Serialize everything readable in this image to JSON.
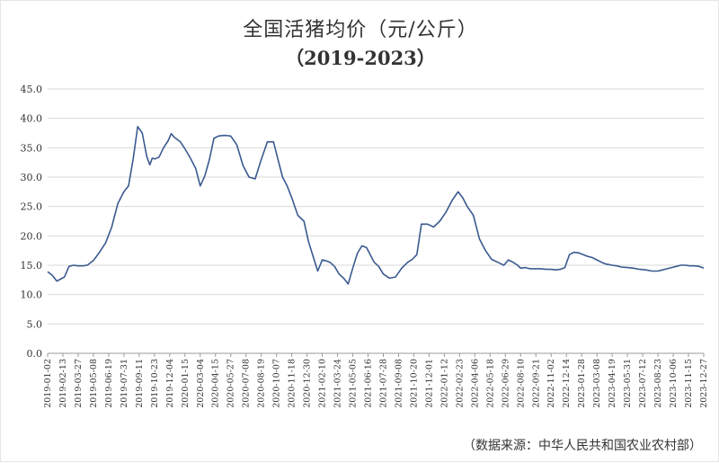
{
  "chart_data": {
    "type": "line",
    "title": "全国活猪均价（元/公斤）",
    "subtitle": "（2019-2023）",
    "xlabel": "",
    "ylabel": "",
    "ylim": [
      0,
      45
    ],
    "yticks": [
      "0.0",
      "5.0",
      "10.0",
      "15.0",
      "20.0",
      "25.0",
      "30.0",
      "35.0",
      "40.0",
      "45.0"
    ],
    "grid": true,
    "line_color": "#3a5a8f",
    "categories": [
      "2019-01-02",
      "2019-02-13",
      "2019-03-27",
      "2019-05-08",
      "2019-06-19",
      "2019-07-31",
      "2019-09-11",
      "2019-10-23",
      "2019-12-04",
      "2020-01-15",
      "2020-03-04",
      "2020-04-15",
      "2020-05-27",
      "2020-07-08",
      "2020-08-19",
      "2020-10-07",
      "2020-11-18",
      "2020-12-30",
      "2021-02-10",
      "2021-03-24",
      "2021-05-05",
      "2021-06-16",
      "2021-07-28",
      "2021-09-08",
      "2021-10-20",
      "2021-12-01",
      "2022-01-12",
      "2022-02-23",
      "2022-04-06",
      "2022-05-18",
      "2022-06-29",
      "2022-08-10",
      "2022-09-21",
      "2022-11-02",
      "2022-12-14",
      "2023-01-28",
      "2023-03-08",
      "2023-04-19",
      "2023-05-31",
      "2023-07-12",
      "2023-08-23",
      "2023-10-06",
      "2023-11-15",
      "2023-12-27"
    ],
    "series": [
      {
        "x": [
          0,
          0.3,
          0.6,
          0.9,
          1.1,
          1.4,
          1.7,
          2.0,
          2.3,
          2.6,
          3.0,
          3.4,
          3.8,
          4.2,
          4.6,
          5.0,
          5.3,
          5.6,
          5.9,
          6.2,
          6.5,
          6.7,
          6.85,
          7.05,
          7.3,
          7.6,
          7.9,
          8.1,
          8.3,
          8.7,
          9.0,
          9.3,
          9.7,
          10.0,
          10.3,
          10.6,
          10.9,
          11.2,
          11.6,
          12.0,
          12.4,
          12.8,
          13.2,
          13.6,
          14.0,
          14.4,
          14.8,
          15.1,
          15.4,
          15.7,
          16.0,
          16.4,
          16.8,
          17.1,
          17.4,
          17.7,
          18.0,
          18.2,
          18.5,
          18.8,
          19.1,
          19.4,
          19.7,
          20.0,
          20.3,
          20.6,
          20.9,
          21.1,
          21.4,
          21.7,
          22.0,
          22.4,
          22.8,
          23.2,
          23.6,
          23.9,
          24.2,
          24.5,
          24.9,
          25.3,
          25.7,
          26.1,
          26.5,
          26.9,
          27.2,
          27.5,
          27.9,
          28.3,
          28.7,
          29.1,
          29.5,
          29.9,
          30.2,
          30.5,
          30.8,
          31.0,
          31.3,
          31.6,
          31.9,
          32.3,
          32.7,
          33.0,
          33.3,
          33.6,
          33.9,
          34.2,
          34.5,
          34.8,
          35.1,
          35.4,
          35.7,
          36.0,
          36.3,
          36.6,
          37.0,
          37.3,
          37.6,
          38.0,
          38.4,
          38.8,
          39.2,
          39.6,
          40.0,
          40.3,
          40.6,
          40.9,
          41.2,
          41.5,
          41.8,
          42.1,
          42.4,
          42.7,
          43.0
        ],
        "values": [
          13.9,
          13.3,
          12.3,
          12.7,
          13.0,
          14.8,
          15.0,
          14.9,
          14.9,
          15.0,
          15.8,
          17.2,
          18.8,
          21.5,
          25.5,
          27.5,
          28.5,
          33.0,
          38.6,
          37.5,
          33.5,
          32.1,
          33.2,
          33.1,
          33.4,
          35.0,
          36.2,
          37.4,
          36.8,
          36.0,
          34.8,
          33.5,
          31.5,
          28.5,
          30.2,
          33.0,
          36.6,
          37.0,
          37.1,
          37.0,
          35.5,
          32.0,
          30.0,
          29.7,
          33.0,
          36.0,
          36.0,
          33.0,
          30.0,
          28.5,
          26.5,
          23.5,
          22.5,
          19.0,
          16.5,
          14.0,
          15.9,
          15.8,
          15.5,
          14.8,
          13.5,
          12.8,
          11.8,
          14.5,
          17.0,
          18.3,
          18.0,
          17.0,
          15.5,
          14.8,
          13.5,
          12.8,
          13.0,
          14.5,
          15.5,
          16.0,
          16.8,
          22.0,
          22.0,
          21.5,
          22.5,
          24.0,
          26.0,
          27.5,
          26.5,
          25.0,
          23.5,
          19.5,
          17.5,
          16.0,
          15.5,
          15.0,
          15.9,
          15.5,
          15.0,
          14.5,
          14.6,
          14.4,
          14.4,
          14.4,
          14.3,
          14.3,
          14.2,
          14.3,
          14.6,
          16.8,
          17.2,
          17.1,
          16.8,
          16.5,
          16.3,
          15.9,
          15.5,
          15.2,
          15.0,
          14.9,
          14.7,
          14.6,
          14.5,
          14.3,
          14.2,
          14.0,
          14.0,
          14.2,
          14.4,
          14.6,
          14.8,
          15.0,
          15.0,
          14.9,
          14.9,
          14.8,
          14.5
        ]
      }
    ],
    "source_note": "（数据来源：中华人民共和国农业农村部）"
  }
}
